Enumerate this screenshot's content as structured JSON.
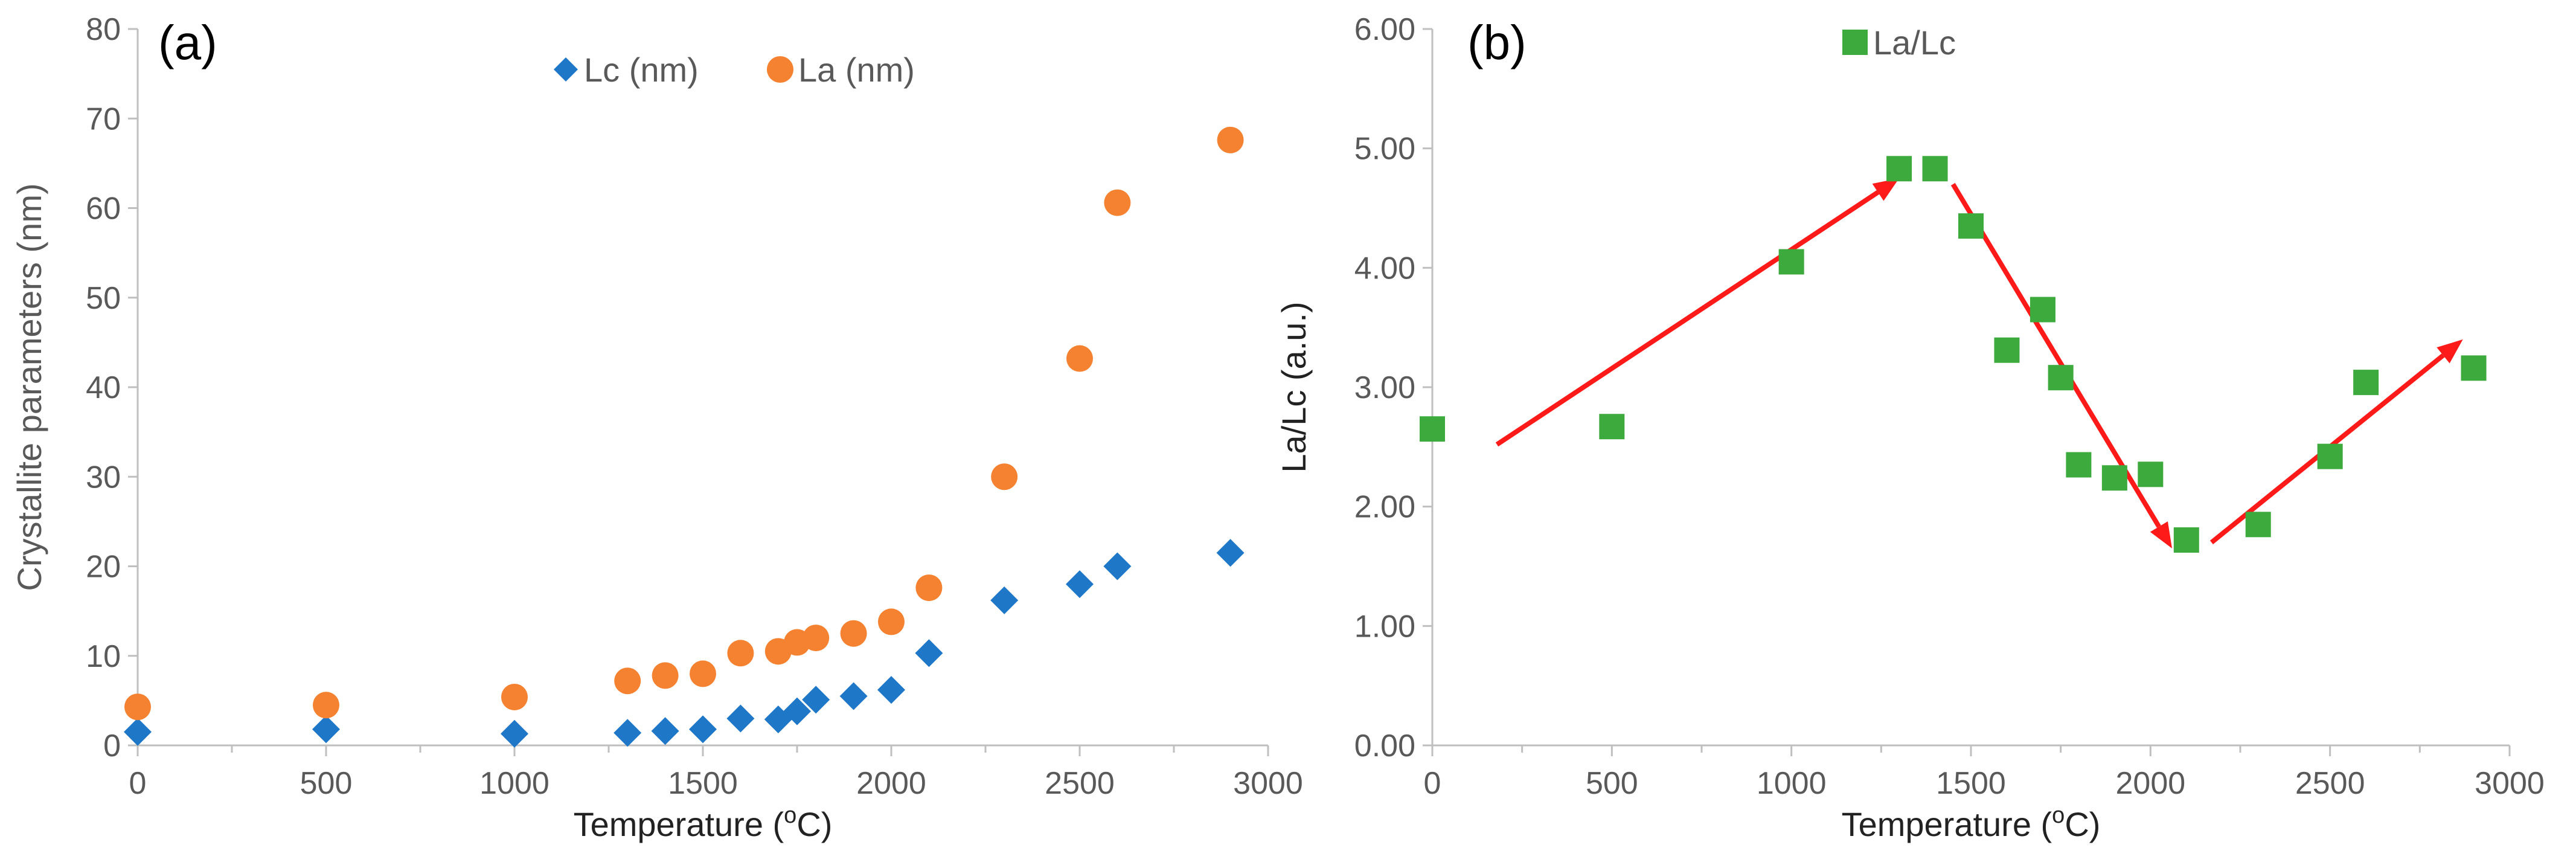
{
  "chart_data": [
    {
      "type": "scatter",
      "panel_label": "(a)",
      "xlabel": "Temperature (",
      "xlabel_sup": "o",
      "xlabel_suffix": "C)",
      "ylabel": "Crystallite parameters (nm)",
      "xlim": [
        0,
        3000
      ],
      "ylim": [
        0,
        80
      ],
      "xticks": [
        "0",
        "500",
        "1000",
        "1500",
        "2000",
        "2500",
        "3000"
      ],
      "yticks": [
        "0",
        "10",
        "20",
        "30",
        "40",
        "50",
        "60",
        "70",
        "80"
      ],
      "legend_position": "top",
      "series": [
        {
          "name": "Lc (nm)",
          "marker": "diamond",
          "color": "#1F77C8",
          "points": [
            [
              0,
              1.5
            ],
            [
              500,
              1.8
            ],
            [
              1000,
              1.3
            ],
            [
              1300,
              1.4
            ],
            [
              1400,
              1.6
            ],
            [
              1500,
              1.8
            ],
            [
              1600,
              3.0
            ],
            [
              1700,
              2.9
            ],
            [
              1750,
              3.8
            ],
            [
              1800,
              5.1
            ],
            [
              1900,
              5.5
            ],
            [
              2000,
              6.2
            ],
            [
              2100,
              10.3
            ],
            [
              2300,
              16.2
            ],
            [
              2500,
              18.0
            ],
            [
              2600,
              20.0
            ],
            [
              2900,
              21.5
            ]
          ]
        },
        {
          "name": "La (nm)",
          "marker": "circle",
          "color": "#F58231",
          "points": [
            [
              0,
              4.3
            ],
            [
              500,
              4.5
            ],
            [
              1000,
              5.4
            ],
            [
              1300,
              7.2
            ],
            [
              1400,
              7.8
            ],
            [
              1500,
              8.0
            ],
            [
              1600,
              10.3
            ],
            [
              1700,
              10.5
            ],
            [
              1750,
              11.5
            ],
            [
              1800,
              12.0
            ],
            [
              1900,
              12.5
            ],
            [
              2000,
              13.8
            ],
            [
              2100,
              17.6
            ],
            [
              2300,
              30.0
            ],
            [
              2500,
              43.2
            ],
            [
              2600,
              60.6
            ],
            [
              2900,
              67.6
            ]
          ]
        }
      ]
    },
    {
      "type": "scatter",
      "panel_label": "(b)",
      "xlabel": "Temperature (",
      "xlabel_sup": "o",
      "xlabel_suffix": "C)",
      "ylabel": "La/Lc  (a.u.)",
      "xlim": [
        0,
        3000
      ],
      "ylim": [
        0,
        6
      ],
      "xticks": [
        "0",
        "500",
        "1000",
        "1500",
        "2000",
        "2500",
        "3000"
      ],
      "yticks": [
        "0.00",
        "1.00",
        "2.00",
        "3.00",
        "4.00",
        "5.00",
        "6.00"
      ],
      "legend_position": "top-left",
      "series": [
        {
          "name": "La/Lc",
          "marker": "square",
          "color": "#3DAA3D",
          "points": [
            [
              0,
              2.65
            ],
            [
              500,
              2.67
            ],
            [
              1000,
              4.05
            ],
            [
              1300,
              4.83
            ],
            [
              1400,
              4.83
            ],
            [
              1500,
              4.35
            ],
            [
              1600,
              3.31
            ],
            [
              1700,
              3.65
            ],
            [
              1750,
              3.08
            ],
            [
              1800,
              2.35
            ],
            [
              1900,
              2.24
            ],
            [
              2000,
              2.27
            ],
            [
              2100,
              1.72
            ],
            [
              2300,
              1.85
            ],
            [
              2500,
              2.42
            ],
            [
              2600,
              3.04
            ],
            [
              2900,
              3.16
            ]
          ]
        }
      ],
      "arrows": {
        "color": "#FF1A1A",
        "segments": [
          [
            [
              180,
              2.52
            ],
            [
              1300,
              4.75
            ]
          ],
          [
            [
              1450,
              4.7
            ],
            [
              2060,
              1.65
            ]
          ],
          [
            [
              2170,
              1.7
            ],
            [
              2870,
              3.4
            ]
          ]
        ]
      }
    }
  ]
}
